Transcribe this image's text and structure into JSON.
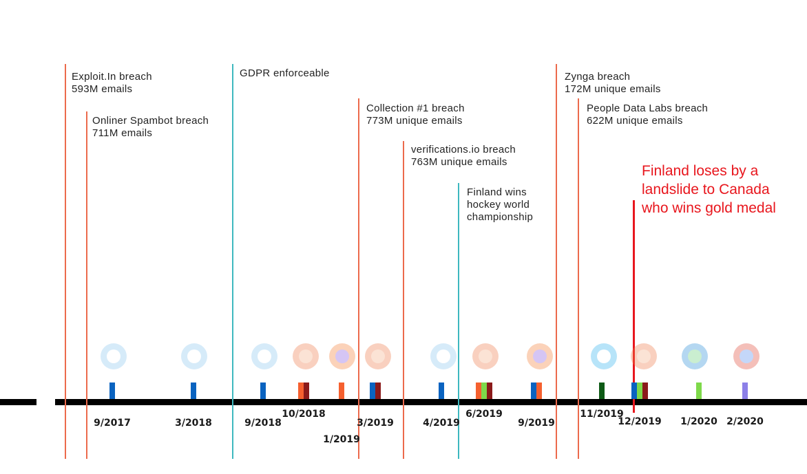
{
  "events": [
    {
      "title": "Exploit.In breach",
      "detail": "593M emails",
      "type": "breach"
    },
    {
      "title": "Onliner Spambot breach",
      "detail": "711M emails",
      "type": "breach"
    },
    {
      "title": "GDPR enforceable",
      "detail": "",
      "type": "milestone"
    },
    {
      "title": "Collection #1 breach",
      "detail": "773M unique emails",
      "type": "breach"
    },
    {
      "title": "verifications.io breach",
      "detail": "763M unique emails",
      "type": "breach"
    },
    {
      "title": "Finland wins",
      "detail": "hockey world",
      "detail2": "championship",
      "type": "milestone"
    },
    {
      "title": "Zynga breach",
      "detail": "172M unique emails",
      "type": "breach"
    },
    {
      "title": "People Data Labs breach",
      "detail": "622M unique emails",
      "type": "breach"
    }
  ],
  "annotation": {
    "line1": "Finland loses by a",
    "line2": "landslide to Canada",
    "line3": "who wins gold medal",
    "color": "#e8161d"
  },
  "colors": {
    "breach": "#ec6a4c",
    "milestone": "#3db8bf",
    "blue": "#0a63c0",
    "orange": "#f5602f",
    "darkred": "#8b1a1a",
    "green": "#7ed94a",
    "darkgreen": "#0e5a16",
    "purple": "#8c80e8"
  },
  "releases": [
    {
      "date": "9/2017",
      "bars": [
        "blue"
      ],
      "icons": [
        "safari"
      ]
    },
    {
      "date": "3/2018",
      "bars": [
        "blue"
      ],
      "icons": [
        "safari"
      ]
    },
    {
      "date": "9/2018",
      "bars": [
        "blue"
      ],
      "icons": [
        "safari"
      ]
    },
    {
      "date": "10/2018",
      "bars": [
        "orange",
        "darkred"
      ],
      "icons": [
        "brave"
      ]
    },
    {
      "date": "1/2019",
      "bars": [
        "orange"
      ],
      "icons": [
        "firefox"
      ]
    },
    {
      "date": "3/2019",
      "bars": [
        "blue",
        "darkred"
      ],
      "icons": [
        "brave"
      ]
    },
    {
      "date": "4/2019",
      "bars": [
        "blue"
      ],
      "icons": [
        "safari"
      ]
    },
    {
      "date": "6/2019",
      "bars": [
        "orange",
        "green",
        "darkred"
      ],
      "icons": [
        "brave"
      ]
    },
    {
      "date": "9/2019",
      "bars": [
        "blue",
        "orange"
      ],
      "icons": [
        "firefox"
      ]
    },
    {
      "date": "11/2019",
      "bars": [
        "darkgreen"
      ],
      "icons": [
        "cursor"
      ]
    },
    {
      "date": "12/2019",
      "bars": [
        "blue",
        "green",
        "darkred"
      ],
      "icons": [
        "brave"
      ]
    },
    {
      "date": "1/2020",
      "bars": [
        "green"
      ],
      "icons": [
        "edge"
      ]
    },
    {
      "date": "2/2020",
      "bars": [
        "purple"
      ],
      "icons": [
        "chrome"
      ]
    }
  ]
}
